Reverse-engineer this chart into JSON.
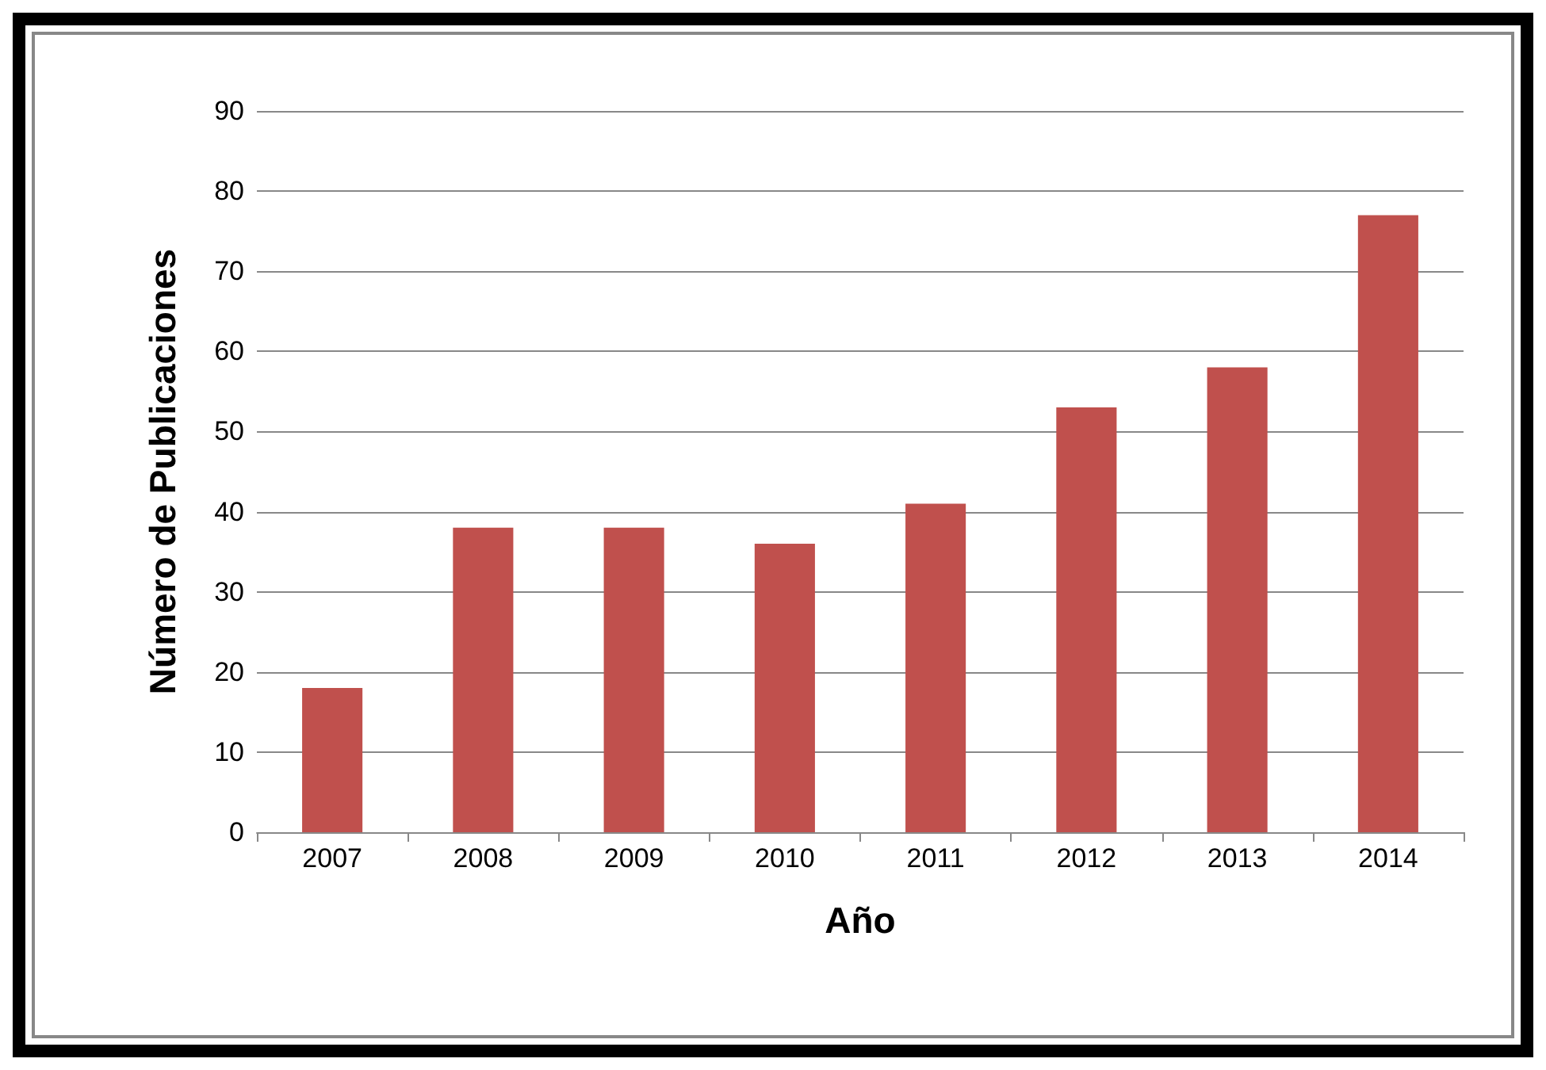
{
  "chart_data": {
    "type": "bar",
    "xlabel": "Año",
    "ylabel": "Número de Publicaciones",
    "categories": [
      "2007",
      "2008",
      "2009",
      "2010",
      "2011",
      "2012",
      "2013",
      "2014"
    ],
    "values": [
      18,
      38,
      38,
      36,
      41,
      53,
      58,
      77
    ],
    "color": "#c0504d",
    "ylim": [
      0,
      90
    ],
    "yticks": [
      0,
      10,
      20,
      30,
      40,
      50,
      60,
      70,
      80,
      90
    ],
    "grid": "y"
  }
}
